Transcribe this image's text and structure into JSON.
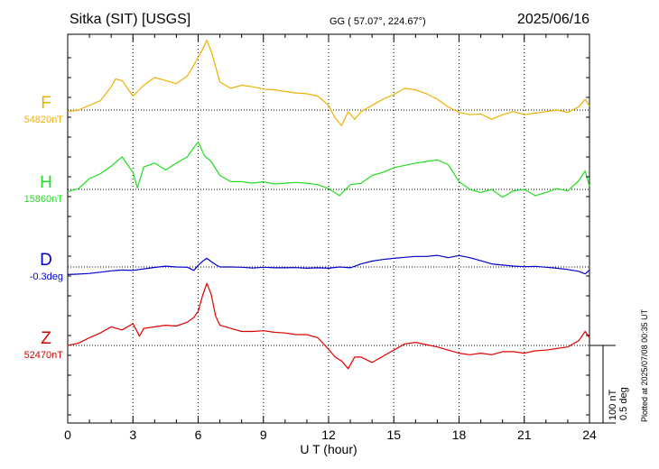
{
  "header": {
    "station": "Sitka (SIT)  [USGS]",
    "coords": "GG ( 57.07°, 224.67°)",
    "date": "2025/06/16"
  },
  "footer": {
    "plotted": "Plotted at 2025/07/08 00:35 UT"
  },
  "chart_data": {
    "type": "line",
    "title": "Sitka (SIT)  [USGS]",
    "xlabel": "U T (hour)",
    "xlim": [
      0,
      24
    ],
    "x_ticks": [
      "0",
      "3",
      "6",
      "9",
      "12",
      "15",
      "18",
      "21",
      "24"
    ],
    "grid": true,
    "scale": {
      "nT_label": "100 nT",
      "deg_label": "0.5 deg",
      "nT_per_bar": 100,
      "deg_per_bar": 0.5
    },
    "series": [
      {
        "name": "F",
        "baseline_label": "54820nT",
        "baseline": 54820,
        "unit": "nT",
        "color": "#f0b000",
        "x": [
          0,
          0.5,
          1,
          1.5,
          2,
          2.2,
          2.5,
          3,
          3.5,
          4,
          4.5,
          5,
          5.5,
          5.8,
          6,
          6.2,
          6.4,
          6.6,
          6.8,
          7,
          7.5,
          8,
          8.5,
          9,
          9.5,
          10,
          10.5,
          11,
          11.5,
          12,
          12.3,
          12.6,
          12.9,
          13.2,
          13.5,
          14,
          14.5,
          15,
          15.5,
          16,
          16.5,
          17,
          17.5,
          18,
          18.5,
          19,
          19.5,
          20,
          20.5,
          21,
          21.5,
          22,
          22.5,
          23,
          23.5,
          23.8,
          24
        ],
        "values": [
          54818,
          54820,
          54826,
          54832,
          54850,
          54860,
          54858,
          54838,
          54852,
          54862,
          54858,
          54854,
          54864,
          54878,
          54888,
          54898,
          54910,
          54896,
          54876,
          54856,
          54848,
          54852,
          54850,
          54847,
          54846,
          54844,
          54842,
          54841,
          54838,
          54826,
          54810,
          54800,
          54818,
          54808,
          54818,
          54826,
          54834,
          54840,
          54848,
          54846,
          54841,
          54834,
          54824,
          54817,
          54814,
          54815,
          54808,
          54814,
          54818,
          54814,
          54816,
          54818,
          54820,
          54817,
          54824,
          54834,
          54825
        ]
      },
      {
        "name": "H",
        "baseline_label": "15860nT",
        "baseline": 15860,
        "unit": "nT",
        "color": "#22dd22",
        "x": [
          0,
          0.5,
          1,
          1.5,
          2,
          2.5,
          3,
          3.2,
          3.5,
          4,
          4.5,
          5,
          5.5,
          5.8,
          6,
          6.3,
          6.6,
          7,
          7.5,
          8,
          8.5,
          9,
          9.5,
          10,
          10.5,
          11,
          11.5,
          12,
          12.5,
          13,
          13.5,
          14,
          14.5,
          15,
          15.5,
          16,
          16.5,
          17,
          17.5,
          18,
          18.5,
          19,
          19.5,
          20,
          20.5,
          21,
          21.5,
          22,
          22.5,
          23,
          23.5,
          23.8,
          24
        ],
        "values": [
          15857,
          15861,
          15874,
          15880,
          15890,
          15902,
          15882,
          15862,
          15889,
          15894,
          15885,
          15894,
          15902,
          15914,
          15921,
          15903,
          15896,
          15878,
          15870,
          15870,
          15868,
          15870,
          15867,
          15868,
          15869,
          15868,
          15866,
          15861,
          15852,
          15866,
          15868,
          15878,
          15882,
          15888,
          15891,
          15894,
          15896,
          15898,
          15892,
          15870,
          15860,
          15856,
          15860,
          15850,
          15858,
          15860,
          15852,
          15856,
          15861,
          15858,
          15871,
          15884,
          15864
        ]
      },
      {
        "name": "D",
        "baseline_label": "-0.3deg",
        "baseline": -0.3,
        "unit": "deg",
        "color": "#0000cc",
        "x": [
          0,
          0.5,
          1,
          1.5,
          2,
          2.5,
          3,
          3.5,
          4,
          4.5,
          5,
          5.5,
          5.8,
          6,
          6.2,
          6.4,
          6.6,
          6.8,
          7,
          7.5,
          8,
          8.5,
          9,
          9.5,
          10,
          10.5,
          11,
          11.5,
          12,
          12.5,
          13,
          13.5,
          14,
          14.5,
          15,
          15.5,
          16,
          16.5,
          17,
          17.5,
          18,
          18.5,
          19,
          19.5,
          20,
          20.5,
          21,
          21.5,
          22,
          22.5,
          23,
          23.5,
          23.8,
          24
        ],
        "values": [
          -0.349,
          -0.346,
          -0.342,
          -0.334,
          -0.325,
          -0.32,
          -0.322,
          -0.312,
          -0.303,
          -0.295,
          -0.3,
          -0.302,
          -0.322,
          -0.29,
          -0.264,
          -0.244,
          -0.265,
          -0.285,
          -0.3,
          -0.3,
          -0.302,
          -0.307,
          -0.302,
          -0.305,
          -0.305,
          -0.304,
          -0.308,
          -0.305,
          -0.308,
          -0.3,
          -0.305,
          -0.28,
          -0.262,
          -0.252,
          -0.244,
          -0.238,
          -0.232,
          -0.232,
          -0.225,
          -0.24,
          -0.226,
          -0.24,
          -0.26,
          -0.28,
          -0.288,
          -0.294,
          -0.298,
          -0.296,
          -0.302,
          -0.308,
          -0.316,
          -0.328,
          -0.345,
          -0.32
        ]
      },
      {
        "name": "Z",
        "baseline_label": "52470nT",
        "baseline": 52470,
        "unit": "nT",
        "color": "#e00000",
        "x": [
          0,
          0.5,
          1,
          1.5,
          2,
          2.5,
          3,
          3.3,
          3.5,
          4,
          4.5,
          5,
          5.5,
          5.8,
          6,
          6.2,
          6.4,
          6.6,
          6.8,
          7,
          7.5,
          8,
          8.5,
          9,
          9.5,
          10,
          10.5,
          11,
          11.5,
          12,
          12.3,
          12.6,
          12.9,
          13.2,
          13.5,
          14,
          14.5,
          15,
          15.5,
          16,
          16.5,
          17,
          17.5,
          18,
          18.5,
          19,
          19.5,
          20,
          20.5,
          21,
          21.5,
          22,
          22.5,
          23,
          23.5,
          23.8,
          24
        ],
        "values": [
          52470,
          52473,
          52480,
          52486,
          52494,
          52490,
          52498,
          52482,
          52492,
          52494,
          52496,
          52495,
          52500,
          52506,
          52514,
          52534,
          52550,
          52536,
          52508,
          52496,
          52492,
          52488,
          52488,
          52489,
          52487,
          52486,
          52484,
          52484,
          52480,
          52465,
          52455,
          52450,
          52440,
          52455,
          52455,
          52448,
          52456,
          52464,
          52472,
          52474,
          52471,
          52468,
          52464,
          52460,
          52458,
          52460,
          52458,
          52462,
          52462,
          52460,
          52463,
          52464,
          52466,
          52468,
          52476,
          52488,
          52480
        ]
      }
    ]
  }
}
